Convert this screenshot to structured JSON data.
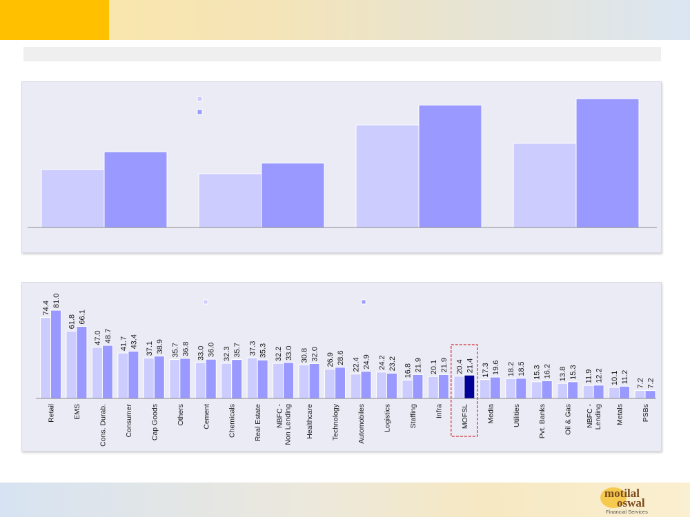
{
  "colors": {
    "series1": "#ccccff",
    "series2": "#9999ff",
    "highlight": "#000099",
    "highlight_box": "#cc0000",
    "header_accent": "#ffc000"
  },
  "logo": {
    "line1": "motilal",
    "line2": "oswal",
    "tagline": "Financial Services"
  },
  "chart_data": [
    {
      "type": "bar",
      "title": "",
      "categories": [
        "",
        "",
        "",
        ""
      ],
      "series": [
        {
          "values": [
            82,
            76,
            145,
            119
          ]
        },
        {
          "values": [
            107,
            91,
            173,
            182
          ]
        }
      ],
      "ylim": [
        0,
        190
      ],
      "grid": false,
      "legend": "top-center"
    },
    {
      "type": "bar",
      "title": "",
      "categories": [
        "Retail",
        "EMS",
        "Cons. Durab.",
        "Consumer",
        "Cap Goods",
        "Others",
        "Cement",
        "Chemicals",
        "Real Estate",
        "NBFC - Non Lending",
        "Healthcare",
        "Technology",
        "Automobiles",
        "Logistics",
        "Staffing",
        "Infra",
        "MOFSL",
        "Media",
        "Utilities",
        "Pvt. Banks",
        "Oil & Gas",
        "NBFC - Lending",
        "Metals",
        "PSBs"
      ],
      "series": [
        {
          "values": [
            74.4,
            61.8,
            47.0,
            41.7,
            37.1,
            35.7,
            33.0,
            32.3,
            37.3,
            32.2,
            30.8,
            26.9,
            22.4,
            24.2,
            16.8,
            20.1,
            20.4,
            17.3,
            18.2,
            15.3,
            13.8,
            11.9,
            10.1,
            7.2
          ]
        },
        {
          "values": [
            81.0,
            66.1,
            48.7,
            43.4,
            38.9,
            36.8,
            36.0,
            35.7,
            35.3,
            33.0,
            32.0,
            28.6,
            24.9,
            23.2,
            21.9,
            21.9,
            21.4,
            19.6,
            18.5,
            16.2,
            15.3,
            12.2,
            11.2,
            7.2
          ]
        }
      ],
      "value_labels": {
        "series1": [
          "74.4",
          "61.8",
          "47.0",
          "41.7",
          "37.1",
          "35.7",
          "33.0",
          "32.3",
          "37.3",
          "32.2",
          "30.8",
          "26.9",
          "22.4",
          "24.2",
          "16.8",
          "20.1",
          "20.4",
          "17.3",
          "18.2",
          "15.3",
          "13.8",
          "11.9",
          "10.1",
          "7.2"
        ],
        "series2": [
          "81.0",
          "66.1",
          "48.7",
          "43.4",
          "38.9",
          "36.8",
          "36.0",
          "35.7",
          "35.3",
          "33.0",
          "32.0",
          "28.6",
          "24.9",
          "23.2",
          "21.9",
          "21.9",
          "21.4",
          "19.6",
          "18.5",
          "16.2",
          "15.3",
          "12.2",
          "11.2",
          "7.2"
        ]
      },
      "highlighted_category": "MOFSL",
      "ylim": [
        0,
        90
      ],
      "grid": false,
      "legend": "top-center"
    }
  ]
}
